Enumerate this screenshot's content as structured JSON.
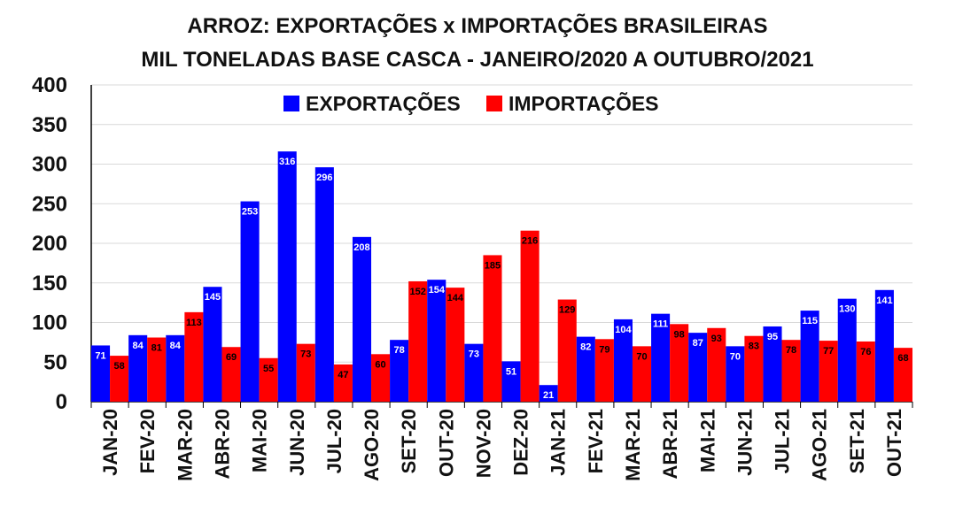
{
  "chart_data": {
    "type": "bar",
    "title": "ARROZ: EXPORTAÇÕES x IMPORTAÇÕES BRASILEIRAS",
    "subtitle": "MIL TONELADAS BASE CASCA - JANEIRO/2020 A OUTUBRO/2021",
    "categories": [
      "JAN-20",
      "FEV-20",
      "MAR-20",
      "ABR-20",
      "MAI-20",
      "JUN-20",
      "JUL-20",
      "AGO-20",
      "SET-20",
      "OUT-20",
      "NOV-20",
      "DEZ-20",
      "JAN-21",
      "FEV-21",
      "MAR-21",
      "ABR-21",
      "MAI-21",
      "JUN-21",
      "JUL-21",
      "AGO-21",
      "SET-21",
      "OUT-21"
    ],
    "series": [
      {
        "name": "EXPORTAÇÕES",
        "color": "#0000ff",
        "label_color": "#ffffff",
        "values": [
          71,
          84,
          84,
          145,
          253,
          316,
          296,
          208,
          78,
          154,
          73,
          51,
          21,
          82,
          104,
          111,
          87,
          70,
          95,
          115,
          130,
          141
        ]
      },
      {
        "name": "IMPORTAÇÕES",
        "color": "#ff0000",
        "label_color": "#000000",
        "values": [
          58,
          81,
          113,
          69,
          55,
          73,
          47,
          60,
          152,
          144,
          185,
          216,
          129,
          79,
          70,
          98,
          93,
          83,
          78,
          77,
          76,
          68
        ]
      }
    ],
    "ylim": [
      0,
      400
    ],
    "yticks": [
      0,
      50,
      100,
      150,
      200,
      250,
      300,
      350,
      400
    ],
    "grid": true,
    "legend_position": "top-center"
  }
}
